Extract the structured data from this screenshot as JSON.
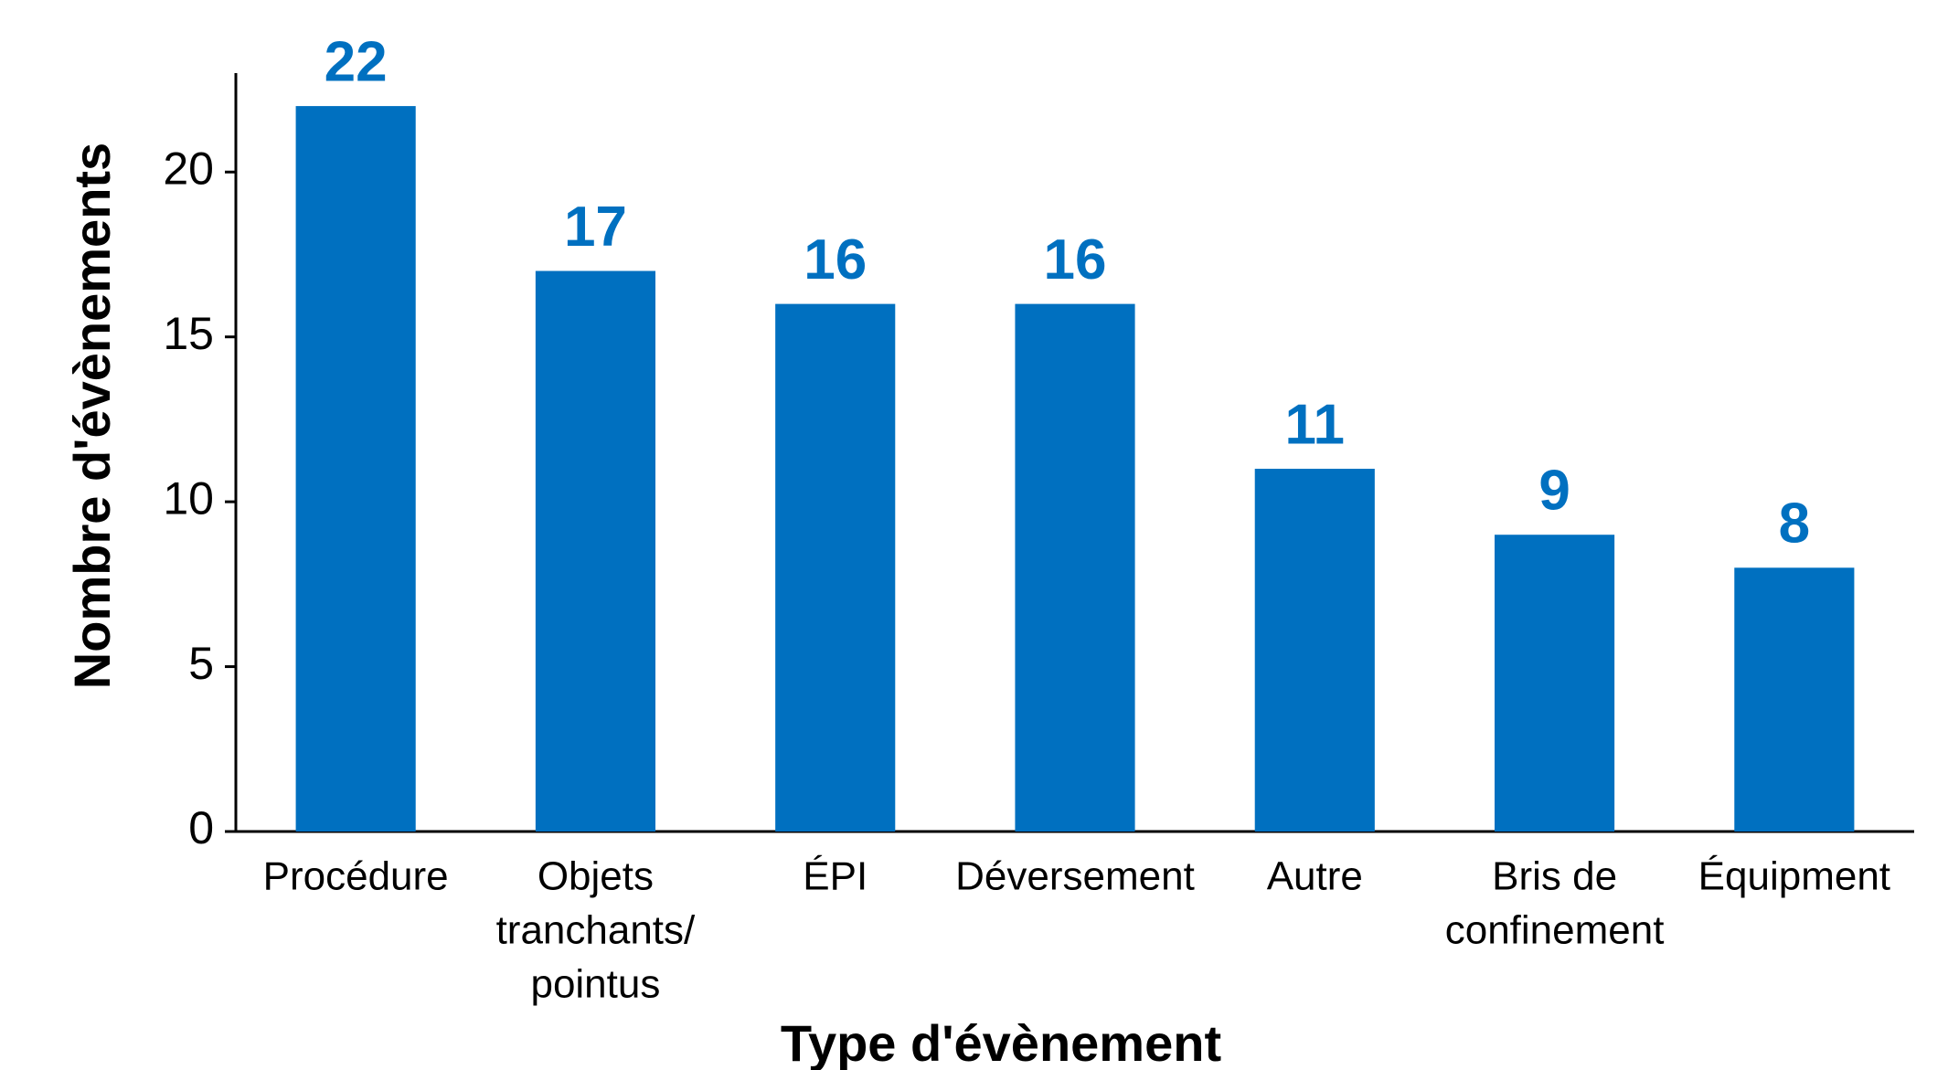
{
  "chart_data": {
    "type": "bar",
    "x_label": "Type d'évènement",
    "y_label": "Nombre d'évènements",
    "categories": [
      [
        "Procédure"
      ],
      [
        "Objets",
        "tranchants/",
        "pointus"
      ],
      [
        "ÉPI"
      ],
      [
        "Déversement"
      ],
      [
        "Autre"
      ],
      [
        "Bris de",
        "confinement"
      ],
      [
        "Équipment"
      ]
    ],
    "values": [
      22,
      17,
      16,
      16,
      11,
      9,
      8
    ],
    "color": "#0070c0",
    "ylim": [
      0,
      23
    ],
    "yticks": [
      0,
      5,
      10,
      15,
      20
    ],
    "grid": false
  }
}
